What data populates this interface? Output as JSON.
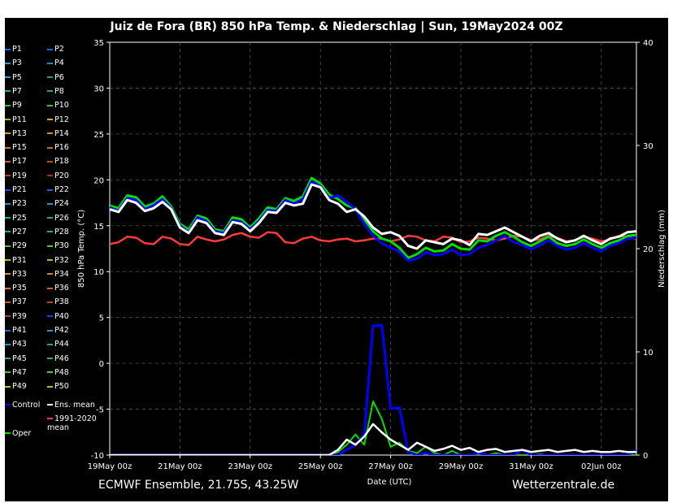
{
  "title": "Juiz de Fora  (BR)  850 hPa Temp. & Niederschlag | Sun, 19May2024 00Z",
  "footer": {
    "left": "ECMWF Ensemble, 21.75S, 43.25W",
    "right": "Wetterzentrale.de"
  },
  "legend": {
    "members": [
      "P1",
      "P2",
      "P3",
      "P4",
      "P5",
      "P6",
      "P7",
      "P8",
      "P9",
      "P10",
      "P11",
      "P12",
      "P13",
      "P14",
      "P15",
      "P16",
      "P17",
      "P18",
      "P19",
      "P20",
      "P21",
      "P22",
      "P23",
      "P24",
      "P25",
      "P26",
      "P27",
      "P28",
      "P29",
      "P30",
      "P31",
      "P32",
      "P33",
      "P34",
      "P35",
      "P36",
      "P37",
      "P38",
      "P39",
      "P40",
      "P41",
      "P42",
      "P43",
      "P44",
      "P45",
      "P46",
      "P47",
      "P48",
      "P49",
      "P50"
    ],
    "member_colors": [
      "#1f5fff",
      "#2266dd",
      "#3a8ccc",
      "#1d8fb0",
      "#30a0c8",
      "#22a07a",
      "#28b060",
      "#2aa84a",
      "#33c040",
      "#3ec53a",
      "#b6b020",
      "#c9b020",
      "#c8a030",
      "#d09030",
      "#c0803a",
      "#b87030",
      "#c0603a",
      "#c04a30",
      "#b03a30",
      "#a03028",
      "#2244ff",
      "#2a5ae0",
      "#3a8ad0",
      "#1aa0b8",
      "#1da8a0",
      "#22a884",
      "#26b070",
      "#2cb45a",
      "#48c038",
      "#5ac830",
      "#d0b820",
      "#d2a828",
      "#c89a30",
      "#cc8a30",
      "#c87a38",
      "#b86a30",
      "#b85838",
      "#b84430",
      "#b03830",
      "#2040f0",
      "#2c64d8",
      "#3a92c8",
      "#1c9cb4",
      "#24a48c",
      "#2aae6c",
      "#30b650",
      "#46c03c",
      "#5ccc2c",
      "#c8c020",
      "#c8b028"
    ],
    "control": "Control",
    "control_color": "#0000ff",
    "ens_mean": "Ens. mean",
    "ens_mean_color": "#ffffff",
    "clim": "1991-2020\nmean",
    "clim_color": "#ff3b3b",
    "oper": "Oper",
    "oper_color": "#00e000"
  },
  "axes": {
    "ylabel_left": "850 hPa Temp. (°C)",
    "ylabel_right": "Niederschlag (mm)",
    "xlabel": "Date (UTC)",
    "y_ticks": [
      "35",
      "30",
      "25",
      "20",
      "15",
      "10",
      "5",
      "0",
      "-5",
      "-10"
    ],
    "y2_ticks": [
      "40",
      "30",
      "20",
      "10",
      "0"
    ],
    "x_ticks": [
      "19May 00z",
      "21May 00z",
      "23May 00z",
      "25May 00z",
      "27May 00z",
      "29May 00z",
      "31May 00z",
      "02Jun 00z"
    ]
  },
  "chart_data": {
    "type": "line",
    "x_unit": "hours since 19May2024 00Z (6-hourly)",
    "ylim": [
      -10,
      35
    ],
    "y2lim": [
      0,
      40
    ],
    "grid": true,
    "temperature": {
      "ens_mean": [
        16.8,
        16.5,
        17.8,
        17.5,
        16.6,
        16.9,
        17.6,
        16.8,
        14.8,
        14.2,
        15.6,
        15.3,
        14.2,
        14.0,
        15.4,
        15.2,
        14.4,
        15.3,
        16.5,
        16.4,
        17.5,
        17.2,
        17.4,
        19.5,
        19.2,
        17.8,
        17.4,
        16.5,
        16.8,
        16.0,
        14.8,
        14.1,
        14.3,
        13.9,
        12.8,
        12.5,
        13.4,
        13.2,
        13.0,
        13.6,
        13.4,
        12.9,
        14.1,
        14.0,
        14.4,
        14.8,
        14.3,
        13.8,
        13.3,
        13.9,
        14.2,
        13.6,
        13.2,
        13.4,
        13.9,
        13.4,
        13.0,
        13.6,
        13.8,
        14.3,
        14.4
      ],
      "oper": [
        17.2,
        16.9,
        18.3,
        18.1,
        17.1,
        17.4,
        18.2,
        17.1,
        15.2,
        14.6,
        16.1,
        15.8,
        14.6,
        14.4,
        15.9,
        15.7,
        14.8,
        15.8,
        17.0,
        16.8,
        18.0,
        17.7,
        18.2,
        20.2,
        19.6,
        18.4,
        17.9,
        17.2,
        16.9,
        15.7,
        14.4,
        13.6,
        13.3,
        12.6,
        11.5,
        11.9,
        12.6,
        12.2,
        12.3,
        13.0,
        12.5,
        12.4,
        13.4,
        13.3,
        13.9,
        14.3,
        13.8,
        13.2,
        12.8,
        13.3,
        13.8,
        13.1,
        12.8,
        13.0,
        13.5,
        13.0,
        12.6,
        13.1,
        13.4,
        13.9,
        14.0
      ],
      "control": [
        17.0,
        16.6,
        18.0,
        17.8,
        16.8,
        17.2,
        17.9,
        16.9,
        15.0,
        14.3,
        15.9,
        15.5,
        14.4,
        14.2,
        15.6,
        15.4,
        14.6,
        15.5,
        16.7,
        16.6,
        17.8,
        17.4,
        17.9,
        19.8,
        19.3,
        18.0,
        18.3,
        17.6,
        16.8,
        15.2,
        13.9,
        13.1,
        12.6,
        12.2,
        11.2,
        11.4,
        12.1,
        11.8,
        11.9,
        12.4,
        11.8,
        11.9,
        12.6,
        12.9,
        13.4,
        13.9,
        13.2,
        12.9,
        12.4,
        12.9,
        13.4,
        12.8,
        12.4,
        12.6,
        13.1,
        12.6,
        12.2,
        12.8,
        13.1,
        13.6,
        13.7
      ],
      "clim_mean": [
        13.0,
        13.2,
        13.8,
        13.7,
        13.1,
        13.0,
        13.8,
        13.6,
        13.0,
        12.9,
        13.8,
        13.5,
        13.3,
        13.5,
        14.0,
        14.2,
        13.8,
        13.7,
        14.3,
        14.2,
        13.2,
        13.1,
        13.6,
        13.8,
        13.4,
        13.3,
        13.5,
        13.6,
        13.3,
        13.4,
        13.6,
        13.6,
        13.3,
        13.5,
        13.9,
        13.8,
        13.4,
        13.3,
        13.8,
        13.7,
        13.2,
        13.3,
        13.7,
        13.6,
        13.4,
        13.6,
        13.9,
        13.8,
        13.4,
        13.5,
        13.9,
        13.7,
        13.3,
        13.4,
        13.8,
        13.6,
        13.3,
        13.5,
        13.9,
        13.8,
        13.6
      ]
    },
    "precipitation_mm": {
      "ens_mean": [
        0,
        0,
        0,
        0,
        0,
        0,
        0,
        0,
        0,
        0,
        0,
        0,
        0,
        0,
        0,
        0,
        0,
        0,
        0,
        0,
        0,
        0,
        0,
        0,
        0,
        0,
        0.5,
        1.5,
        1.0,
        1.8,
        3.0,
        2.2,
        1.5,
        1.0,
        0.5,
        1.2,
        0.8,
        0.4,
        0.6,
        0.9,
        0.5,
        0.7,
        0.3,
        0.5,
        0.6,
        0.3,
        0.4,
        0.5,
        0.3,
        0.4,
        0.5,
        0.3,
        0.4,
        0.5,
        0.3,
        0.4,
        0.3,
        0.3,
        0.4,
        0.3,
        0.3
      ],
      "control": [
        0,
        0,
        0,
        0,
        0,
        0,
        0,
        0,
        0,
        0,
        0,
        0,
        0,
        0,
        0,
        0,
        0,
        0,
        0,
        0,
        0,
        0,
        0,
        0,
        0,
        0,
        0,
        0.5,
        1.0,
        2.0,
        12.5,
        12.6,
        4.5,
        4.6,
        0.3,
        0,
        0.2,
        0,
        0,
        0,
        0,
        0,
        0.2,
        0,
        0,
        0,
        0,
        0.5,
        0,
        0,
        0,
        0,
        0,
        0,
        0,
        0,
        0,
        0,
        0,
        0,
        0.5
      ],
      "oper": [
        0,
        0,
        0,
        0,
        0,
        0,
        0,
        0,
        0,
        0,
        0,
        0,
        0,
        0,
        0,
        0,
        0,
        0,
        0,
        0,
        0,
        0,
        0,
        0,
        0,
        0,
        0.3,
        1.0,
        2.0,
        1.0,
        5.2,
        3.5,
        0.8,
        1.2,
        0.4,
        0.2,
        0.8,
        0.2,
        0,
        0.4,
        0,
        0,
        0,
        0,
        0.2,
        0,
        0,
        0,
        0,
        0.1,
        0,
        0,
        0,
        0,
        0,
        0,
        0,
        0,
        0,
        0,
        0
      ]
    }
  }
}
